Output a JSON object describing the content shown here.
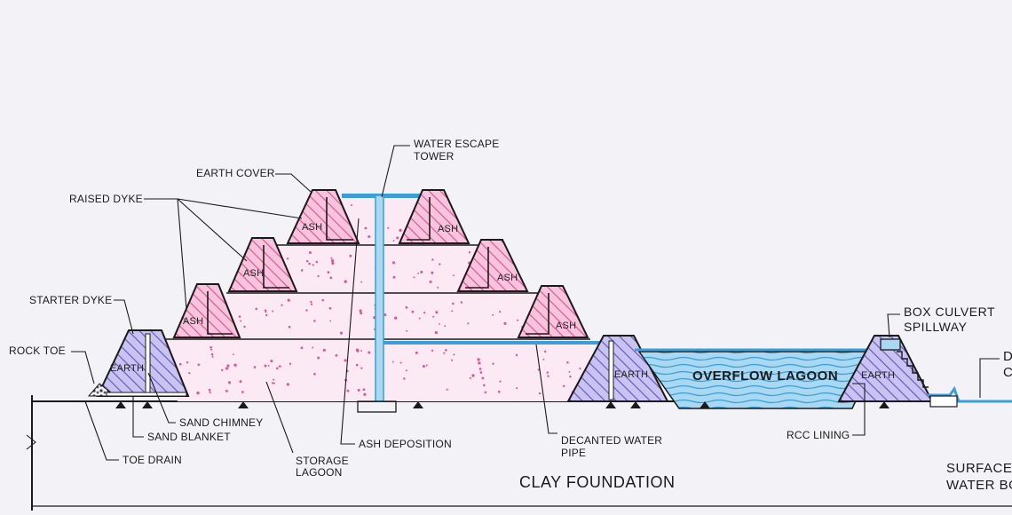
{
  "labels": {
    "water_escape_tower_1": "WATER ESCAPE",
    "water_escape_tower_2": "TOWER",
    "earth_cover": "EARTH COVER",
    "raised_dyke": "RAISED DYKE",
    "starter_dyke": "STARTER DYKE",
    "rock_toe": "ROCK TOE",
    "sand_chimney": "SAND CHIMNEY",
    "sand_blanket": "SAND BLANKET",
    "toe_drain": "TOE DRAIN",
    "storage_lagoon_1": "STORAGE",
    "storage_lagoon_2": "LAGOON",
    "ash_deposition": "ASH DEPOSITION",
    "decanted_water_pipe_1": "DECANTED WATER",
    "decanted_water_pipe_2": "PIPE",
    "clay_foundation": "CLAY FOUNDATION",
    "box_culvert_1": "BOX CULVERT",
    "box_culvert_2": "SPILLWAY",
    "rcc_lining": "RCC LINING",
    "overflow_lagoon": "OVERFLOW LAGOON",
    "surface_water_1": "SURFACE",
    "surface_water_2": "WATER BO",
    "cut_label_1": "D",
    "cut_label_2": "C"
  },
  "dyke_labels": {
    "ash": "ASH",
    "earth": "EARTH"
  },
  "colors": {
    "ash_hatch": "#e0559a",
    "ash_fill": "#f6c4dc",
    "earth_hatch": "#6a58c8",
    "earth_fill": "#c9c3f0",
    "water": "#3b9ed8",
    "water_fill": "#a9d8f3",
    "lagoon_fill": "#fbeaf3",
    "lagoon_dot": "#e0559a",
    "ink": "#1a1a1a",
    "paper": "#f3f3f7"
  }
}
